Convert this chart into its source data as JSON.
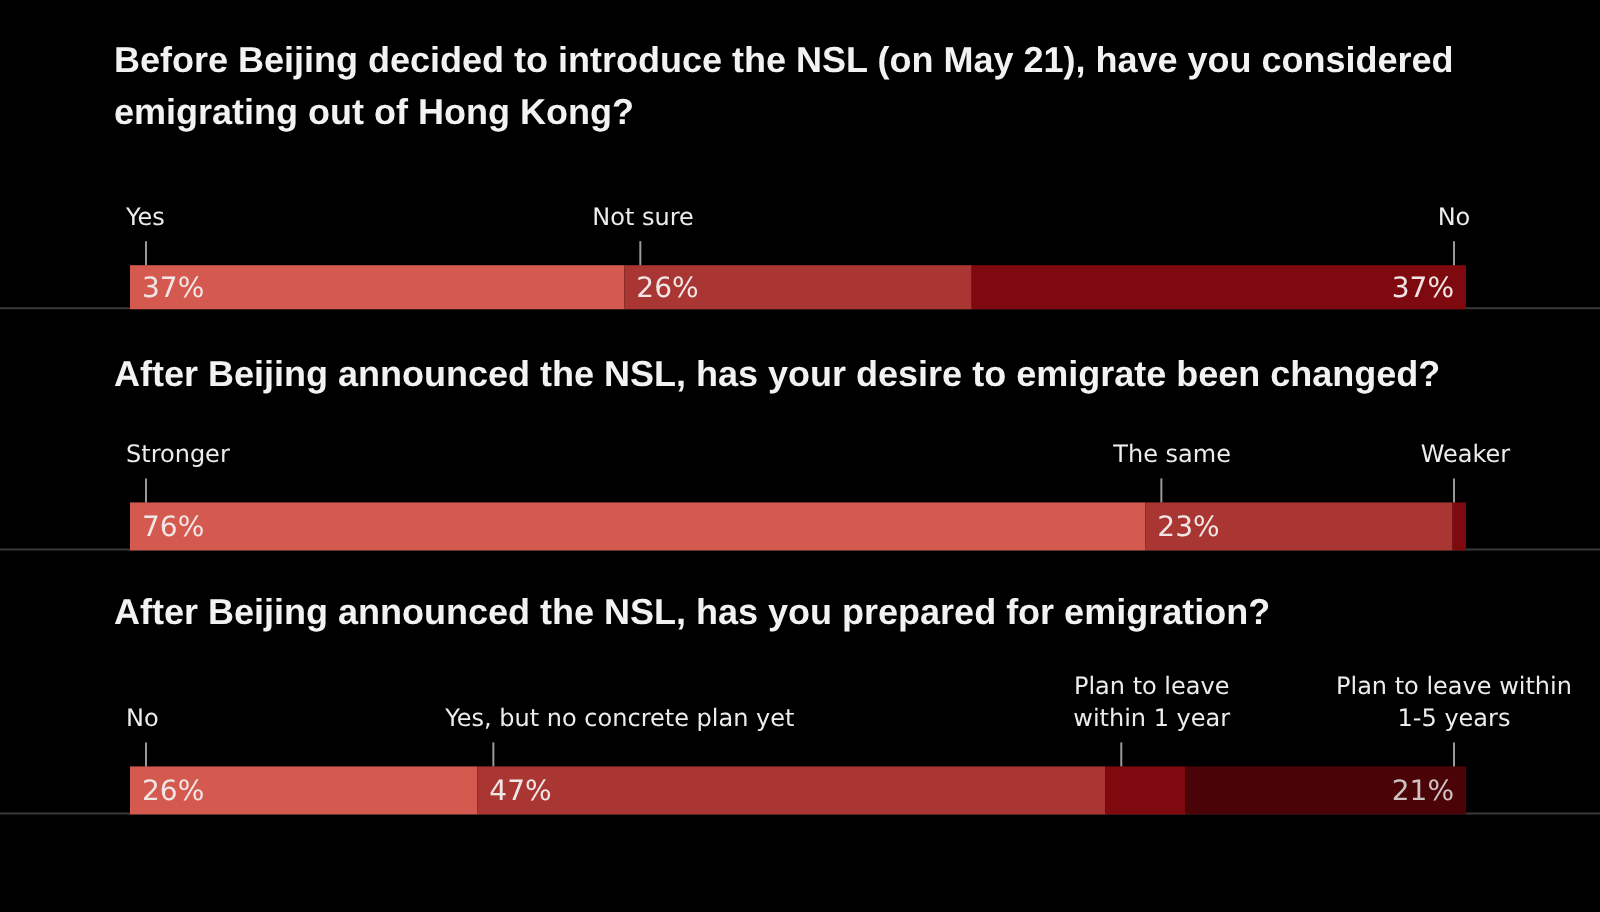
{
  "chart_data": [
    {
      "type": "bar",
      "orientation": "horizontal",
      "stacked": true,
      "title": "Before Beijing decided to introduce the NSL (on May 21), have you considered emigrating out of Hong Kong?",
      "categories": [
        null
      ],
      "series": [
        {
          "name": "Yes",
          "color": "#d45a50",
          "values": [
            37
          ],
          "value_labels": [
            "37%"
          ]
        },
        {
          "name": "Not sure",
          "color": "#a93632",
          "values": [
            26
          ],
          "value_labels": [
            "26%"
          ]
        },
        {
          "name": "No",
          "color": "#7e0a0f",
          "values": [
            37
          ],
          "value_labels": [
            "37%"
          ]
        }
      ]
    },
    {
      "type": "bar",
      "orientation": "horizontal",
      "stacked": true,
      "title": "After Beijing announced the NSL, has your desire to emigrate been changed?",
      "categories": [
        null
      ],
      "series": [
        {
          "name": "Stronger",
          "color": "#d45a50",
          "values": [
            76
          ],
          "value_labels": [
            "76%"
          ]
        },
        {
          "name": "The same",
          "color": "#a93632",
          "values": [
            23
          ],
          "value_labels": [
            "23%"
          ]
        },
        {
          "name": "Weaker",
          "color": "#7e0a0f",
          "values": [
            1
          ],
          "value_labels": [
            null
          ]
        }
      ]
    },
    {
      "type": "bar",
      "orientation": "horizontal",
      "stacked": true,
      "title": "After Beijing announced the NSL, has you prepared for emigration?",
      "categories": [
        null
      ],
      "series": [
        {
          "name": "No",
          "color": "#d45a50",
          "values": [
            26
          ],
          "value_labels": [
            "26%"
          ]
        },
        {
          "name": "Yes, but no concrete plan yet",
          "color": "#a93632",
          "values": [
            47
          ],
          "value_labels": [
            "47%"
          ]
        },
        {
          "name": "Plan to leave within 1 year",
          "color": "#7e0a0f",
          "values": [
            6
          ],
          "value_labels": [
            null
          ]
        },
        {
          "name": "Plan to leave within 1-5 years",
          "color": "#4a0306",
          "values": [
            21
          ],
          "value_labels": [
            "21%"
          ]
        }
      ]
    }
  ]
}
